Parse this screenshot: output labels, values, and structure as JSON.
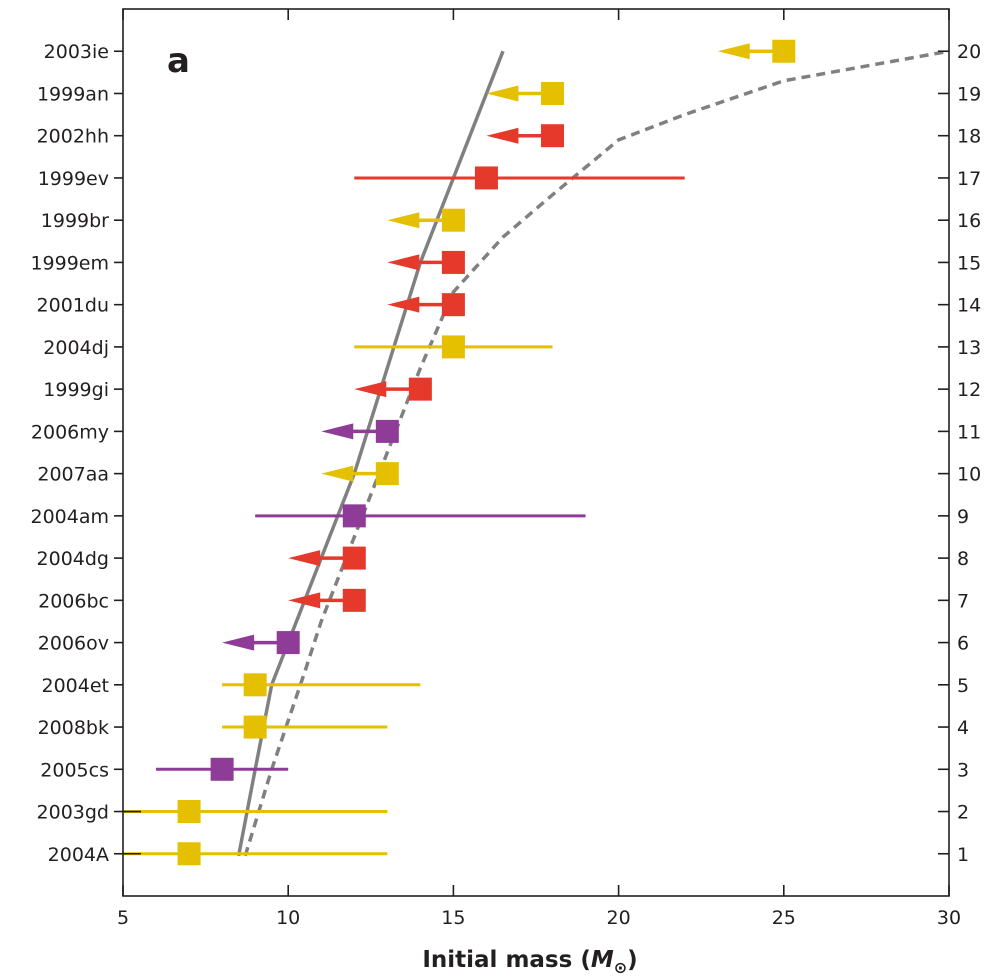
{
  "chart_data": {
    "type": "scatter",
    "panel_label": "a",
    "xlabel": {
      "prefix": "Initial mass (",
      "symbol": "M",
      "sub": "⊙",
      "suffix": ")"
    },
    "xlim": [
      5,
      30
    ],
    "ylim": [
      0,
      21
    ],
    "xticks": [
      5,
      10,
      15,
      20,
      25,
      30
    ],
    "grid": false,
    "colors": {
      "yellow": "#e4c000",
      "red": "#e5392b",
      "purple": "#8e3c97",
      "curve": "#808080",
      "axis": "#231f20"
    },
    "supernovae": [
      {
        "name": "2003ie",
        "rank": 20,
        "mass": 25,
        "color": "yellow",
        "type": "upper",
        "arrow_to": 23
      },
      {
        "name": "1999an",
        "rank": 19,
        "mass": 18,
        "color": "yellow",
        "type": "upper",
        "arrow_to": 16
      },
      {
        "name": "2002hh",
        "rank": 18,
        "mass": 18,
        "color": "red",
        "type": "upper",
        "arrow_to": 16
      },
      {
        "name": "1999ev",
        "rank": 17,
        "mass": 16,
        "color": "red",
        "type": "range",
        "low": 12,
        "high": 22
      },
      {
        "name": "1999br",
        "rank": 16,
        "mass": 15,
        "color": "yellow",
        "type": "upper",
        "arrow_to": 13
      },
      {
        "name": "1999em",
        "rank": 15,
        "mass": 15,
        "color": "red",
        "type": "upper",
        "arrow_to": 13
      },
      {
        "name": "2001du",
        "rank": 14,
        "mass": 15,
        "color": "red",
        "type": "upper",
        "arrow_to": 13
      },
      {
        "name": "2004dj",
        "rank": 13,
        "mass": 15,
        "color": "yellow",
        "type": "range",
        "low": 12,
        "high": 18
      },
      {
        "name": "1999gi",
        "rank": 12,
        "mass": 14,
        "color": "red",
        "type": "upper",
        "arrow_to": 12
      },
      {
        "name": "2006my",
        "rank": 11,
        "mass": 13,
        "color": "purple",
        "type": "upper",
        "arrow_to": 11
      },
      {
        "name": "2007aa",
        "rank": 10,
        "mass": 13,
        "color": "yellow",
        "type": "upper",
        "arrow_to": 11
      },
      {
        "name": "2004am",
        "rank": 9,
        "mass": 12,
        "color": "purple",
        "type": "range",
        "low": 9,
        "high": 19
      },
      {
        "name": "2004dg",
        "rank": 8,
        "mass": 12,
        "color": "red",
        "type": "upper",
        "arrow_to": 10
      },
      {
        "name": "2006bc",
        "rank": 7,
        "mass": 12,
        "color": "red",
        "type": "upper",
        "arrow_to": 10
      },
      {
        "name": "2006ov",
        "rank": 6,
        "mass": 10,
        "color": "purple",
        "type": "upper",
        "arrow_to": 8
      },
      {
        "name": "2004et",
        "rank": 5,
        "mass": 9,
        "color": "yellow",
        "type": "range",
        "low": 8,
        "high": 14
      },
      {
        "name": "2008bk",
        "rank": 4,
        "mass": 9,
        "color": "yellow",
        "type": "range",
        "low": 8,
        "high": 13
      },
      {
        "name": "2005cs",
        "rank": 3,
        "mass": 8,
        "color": "purple",
        "type": "range",
        "low": 6,
        "high": 10
      },
      {
        "name": "2003gd",
        "rank": 2,
        "mass": 7,
        "color": "yellow",
        "type": "range",
        "low": 5,
        "high": 13
      },
      {
        "name": "2004A",
        "rank": 1,
        "mass": 7,
        "color": "yellow",
        "type": "range",
        "low": 5,
        "high": 13
      }
    ],
    "curves": [
      {
        "style": "solid",
        "points": [
          [
            8.5,
            0.95
          ],
          [
            9.0,
            3.0
          ],
          [
            9.5,
            5.0
          ],
          [
            10.0,
            6.0
          ],
          [
            11.0,
            8.0
          ],
          [
            12.0,
            10.0
          ],
          [
            13.0,
            12.5
          ],
          [
            14.0,
            15.0
          ],
          [
            15.0,
            17.0
          ],
          [
            16.5,
            20.0
          ]
        ]
      },
      {
        "style": "dashed",
        "points": [
          [
            8.7,
            0.95
          ],
          [
            9.5,
            3.0
          ],
          [
            10.5,
            5.3
          ],
          [
            11.0,
            6.5
          ],
          [
            12.0,
            8.5
          ],
          [
            13.0,
            10.5
          ],
          [
            14.0,
            12.5
          ],
          [
            15.0,
            14.3
          ],
          [
            16.5,
            15.6
          ],
          [
            18.0,
            16.6
          ],
          [
            20.0,
            17.9
          ],
          [
            22.0,
            18.5
          ],
          [
            25.0,
            19.3
          ],
          [
            30.0,
            20.0
          ]
        ]
      }
    ]
  }
}
